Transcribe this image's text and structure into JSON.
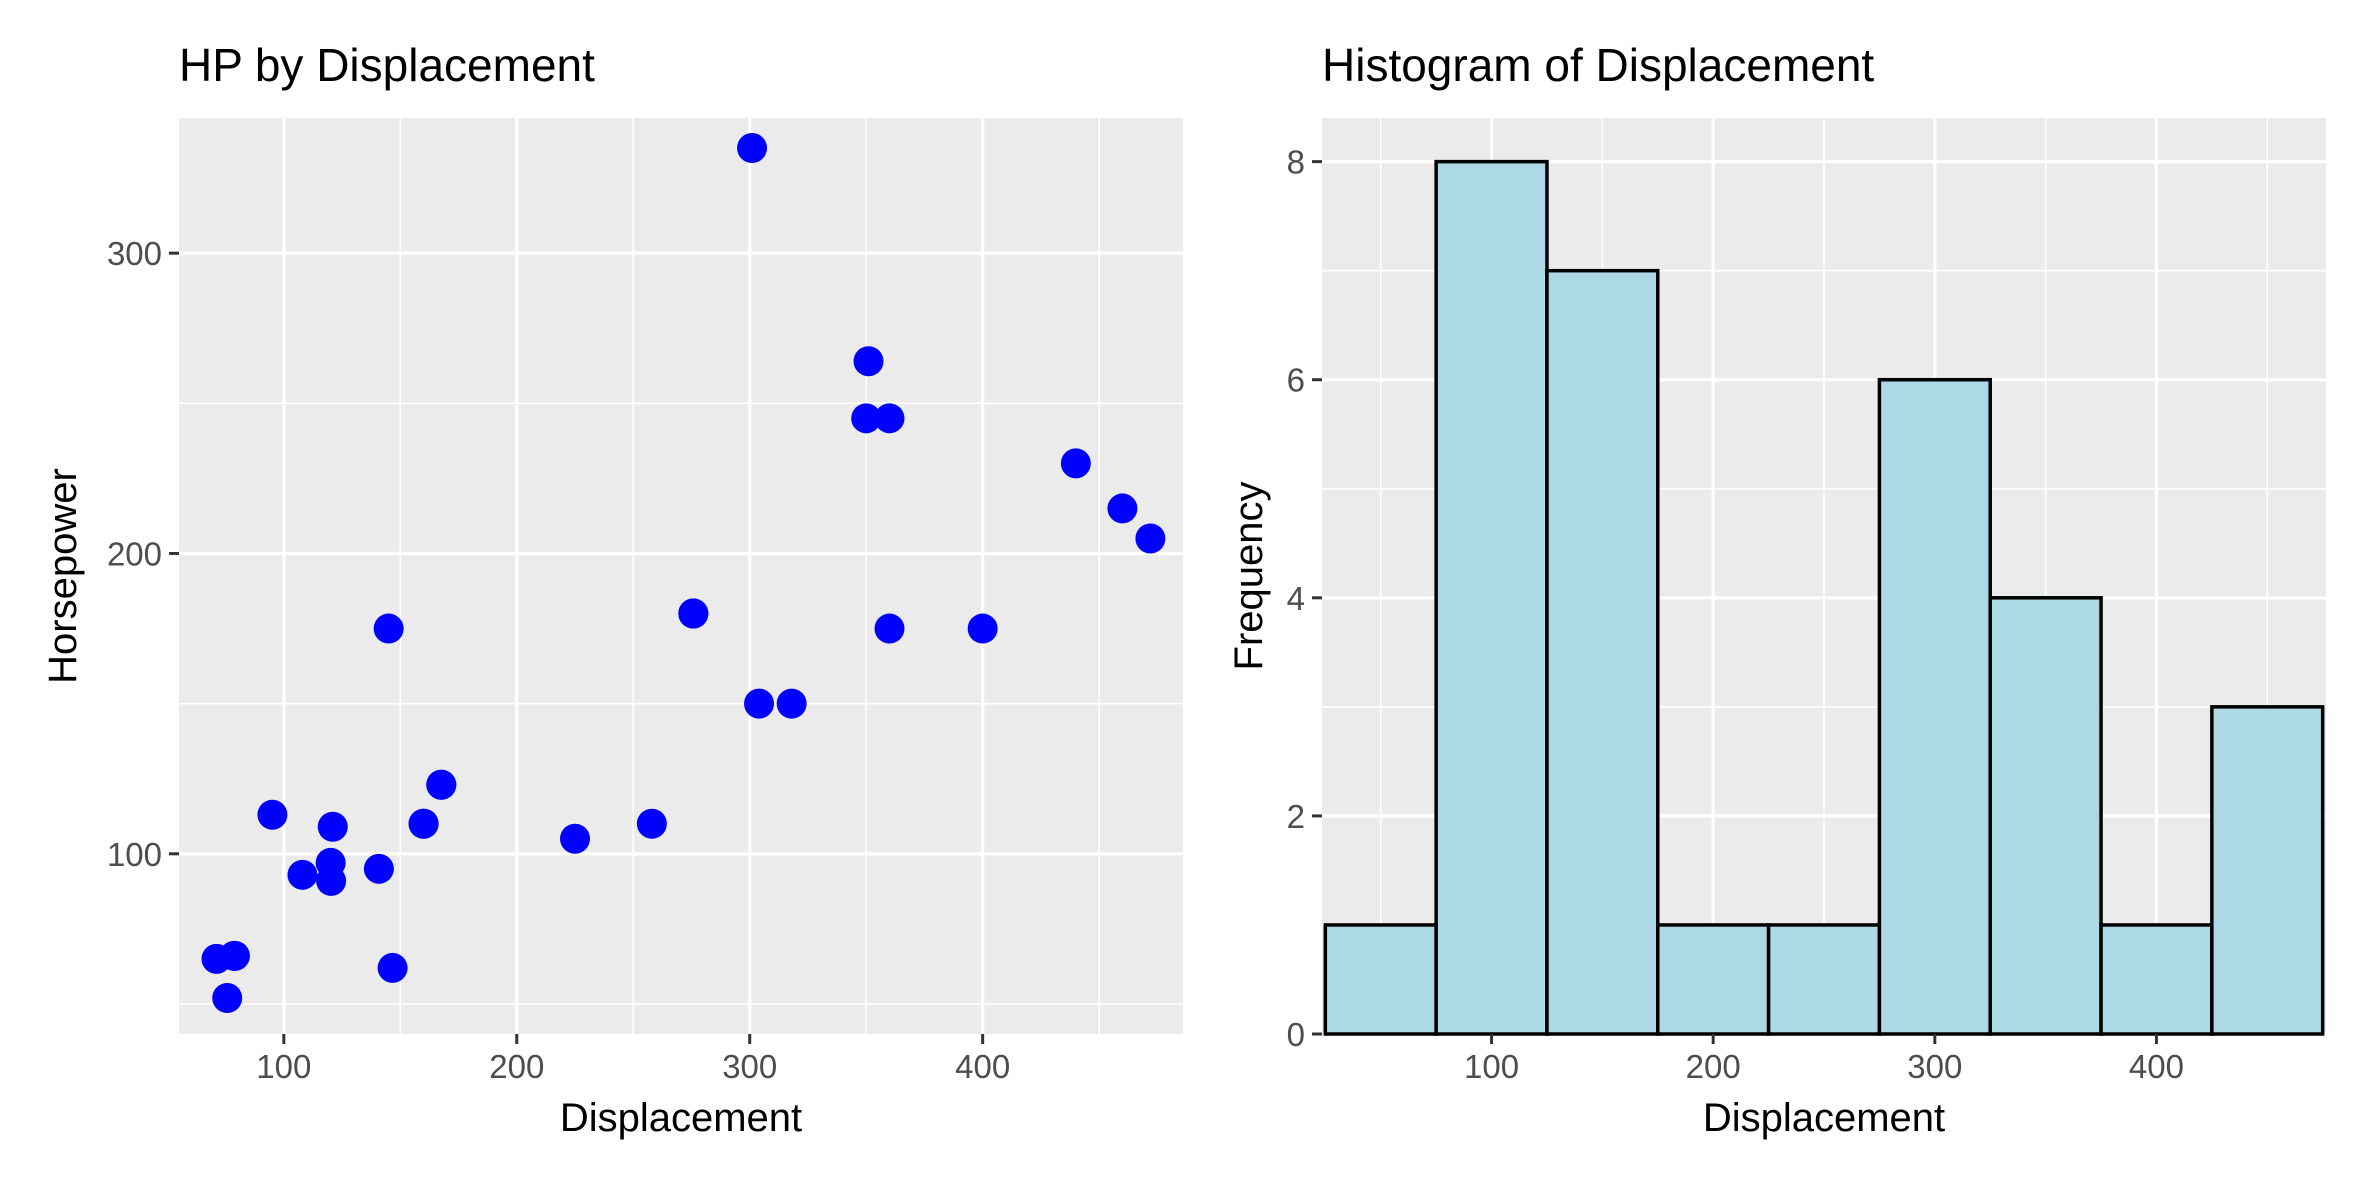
{
  "chart_data": [
    {
      "type": "scatter",
      "title": "HP by Displacement",
      "xlabel": "Displacement",
      "ylabel": "Horsepower",
      "xlim": [
        55,
        486
      ],
      "ylim": [
        40,
        345
      ],
      "x_ticks": [
        100,
        200,
        300,
        400
      ],
      "y_ticks": [
        100,
        200,
        300
      ],
      "grid": true,
      "point_color": "#0000ff",
      "points": [
        {
          "x": 160,
          "y": 110
        },
        {
          "x": 160,
          "y": 110
        },
        {
          "x": 108,
          "y": 93
        },
        {
          "x": 258,
          "y": 110
        },
        {
          "x": 360,
          "y": 175
        },
        {
          "x": 225,
          "y": 105
        },
        {
          "x": 360,
          "y": 245
        },
        {
          "x": 146.7,
          "y": 62
        },
        {
          "x": 140.8,
          "y": 95
        },
        {
          "x": 167.6,
          "y": 123
        },
        {
          "x": 167.6,
          "y": 123
        },
        {
          "x": 275.8,
          "y": 180
        },
        {
          "x": 275.8,
          "y": 180
        },
        {
          "x": 275.8,
          "y": 180
        },
        {
          "x": 472,
          "y": 205
        },
        {
          "x": 460,
          "y": 215
        },
        {
          "x": 440,
          "y": 230
        },
        {
          "x": 78.7,
          "y": 66
        },
        {
          "x": 75.7,
          "y": 52
        },
        {
          "x": 71.1,
          "y": 65
        },
        {
          "x": 120.1,
          "y": 97
        },
        {
          "x": 318,
          "y": 150
        },
        {
          "x": 304,
          "y": 150
        },
        {
          "x": 350,
          "y": 245
        },
        {
          "x": 400,
          "y": 175
        },
        {
          "x": 79,
          "y": 66
        },
        {
          "x": 120.3,
          "y": 91
        },
        {
          "x": 95.1,
          "y": 113
        },
        {
          "x": 351,
          "y": 264
        },
        {
          "x": 145,
          "y": 175
        },
        {
          "x": 301,
          "y": 335
        },
        {
          "x": 121,
          "y": 109
        }
      ]
    },
    {
      "type": "bar",
      "title": "Histogram of Displacement",
      "xlabel": "Displacement",
      "ylabel": "Frequency",
      "xlim": [
        23.5,
        476.5
      ],
      "ylim": [
        0,
        8.4
      ],
      "x_ticks": [
        100,
        200,
        300,
        400
      ],
      "y_ticks": [
        0,
        2,
        4,
        6,
        8
      ],
      "grid": true,
      "fill_color": "#add8e6",
      "outline_color": "#000000",
      "bins": [
        {
          "start": 25,
          "end": 75,
          "count": 1
        },
        {
          "start": 75,
          "end": 125,
          "count": 8
        },
        {
          "start": 125,
          "end": 175,
          "count": 7
        },
        {
          "start": 175,
          "end": 225,
          "count": 1
        },
        {
          "start": 225,
          "end": 275,
          "count": 1
        },
        {
          "start": 275,
          "end": 325,
          "count": 6
        },
        {
          "start": 325,
          "end": 375,
          "count": 4
        },
        {
          "start": 375,
          "end": 425,
          "count": 1
        },
        {
          "start": 425,
          "end": 475,
          "count": 3
        }
      ]
    }
  ]
}
